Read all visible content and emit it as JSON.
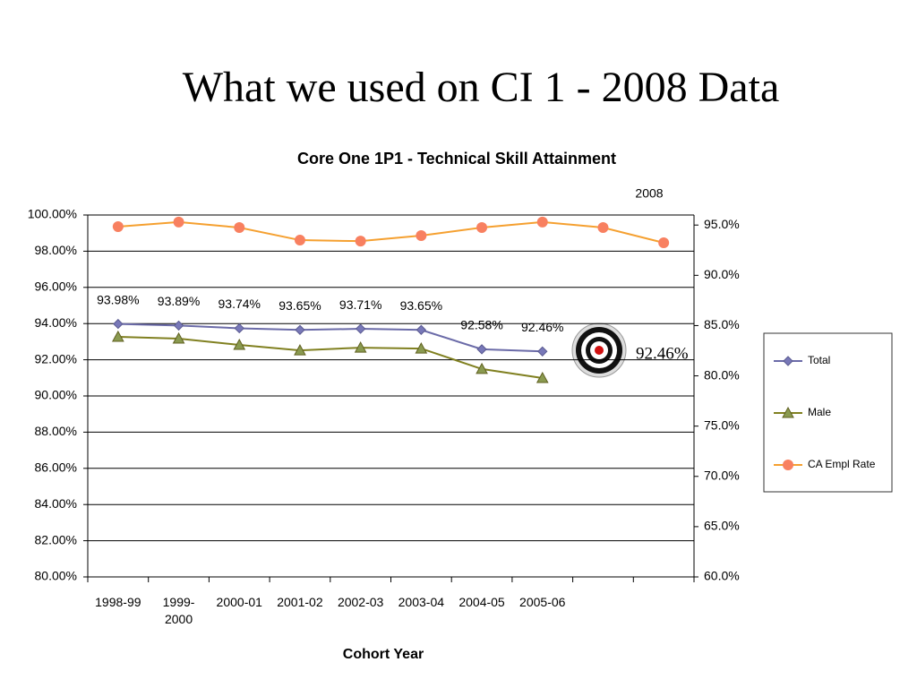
{
  "chart_data": {
    "type": "line",
    "page_title": "What we used on CI 1 - 2008 Data",
    "title": "Core One 1P1 - Technical Skill Attainment",
    "x_label": "Cohort Year",
    "annotations": [
      "2008",
      "92.46%"
    ],
    "categories": [
      "1998-99",
      "1999-2000",
      "2000-01",
      "2001-02",
      "2002-03",
      "2003-04",
      "2004-05",
      "2005-06",
      null,
      null
    ],
    "series": [
      {
        "name": "Total",
        "color": "#6b6ba8",
        "marker": "diamond",
        "marker_color": "#7878b8",
        "values": [
          93.98,
          93.89,
          93.74,
          93.65,
          93.71,
          93.65,
          92.58,
          92.46,
          null,
          null
        ],
        "value_labels": [
          "93.98%",
          "93.89%",
          "93.74%",
          "93.65%",
          "93.71%",
          "93.65%",
          "92.58%",
          "92.46%",
          null,
          null
        ]
      },
      {
        "name": "Male",
        "color": "#808020",
        "marker": "triangle",
        "marker_color": "#8a9a50",
        "values": [
          93.27,
          93.17,
          92.82,
          92.52,
          92.67,
          92.62,
          91.49,
          90.99,
          null,
          null
        ]
      },
      {
        "name": "CA Empl Rate",
        "color": "#f5a030",
        "marker": "circle",
        "marker_color": "#f88060",
        "axis": "y2",
        "values": [
          94.84,
          95.3,
          94.75,
          93.5,
          93.4,
          93.95,
          94.75,
          95.3,
          94.75,
          93.24
        ]
      }
    ],
    "ylim": [
      80,
      100
    ],
    "yticks": [
      {
        "value": 80,
        "label": "80.00%"
      },
      {
        "value": 82,
        "label": "82.00%"
      },
      {
        "value": 84,
        "label": "84.00%"
      },
      {
        "value": 86,
        "label": "86.00%"
      },
      {
        "value": 88,
        "label": "88.00%"
      },
      {
        "value": 90,
        "label": "90.00%"
      },
      {
        "value": 92,
        "label": "92.00%"
      },
      {
        "value": 94,
        "label": "94.00%"
      },
      {
        "value": 96,
        "label": "96.00%"
      },
      {
        "value": 98,
        "label": "98.00%"
      },
      {
        "value": 100,
        "label": "100.00%"
      }
    ],
    "y2lim": [
      60,
      96
    ],
    "y2ticks": [
      {
        "value": 60,
        "label": "60.0%"
      },
      {
        "value": 65,
        "label": "65.0%"
      },
      {
        "value": 70,
        "label": "70.0%"
      },
      {
        "value": 75,
        "label": "75.0%"
      },
      {
        "value": 80,
        "label": "80.0%"
      },
      {
        "value": 85,
        "label": "85.0%"
      },
      {
        "value": 90,
        "label": "90.0%"
      },
      {
        "value": 95,
        "label": "95.0%"
      }
    ],
    "grid": true,
    "legend": "right"
  }
}
